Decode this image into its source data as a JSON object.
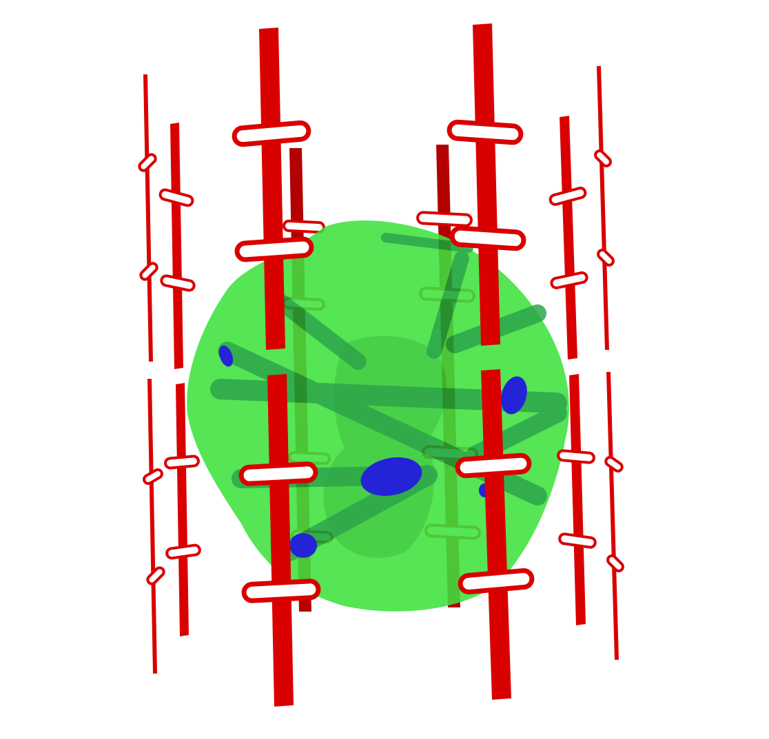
{
  "scene": {
    "description_label": "",
    "colors": {
      "background": "#ffffff",
      "rod": "#d90000",
      "rod_dark": "#b30000",
      "blob": "#33dd33",
      "blob_dark": "#22aa22",
      "channel": "#119933",
      "site": "#2222cc"
    }
  }
}
